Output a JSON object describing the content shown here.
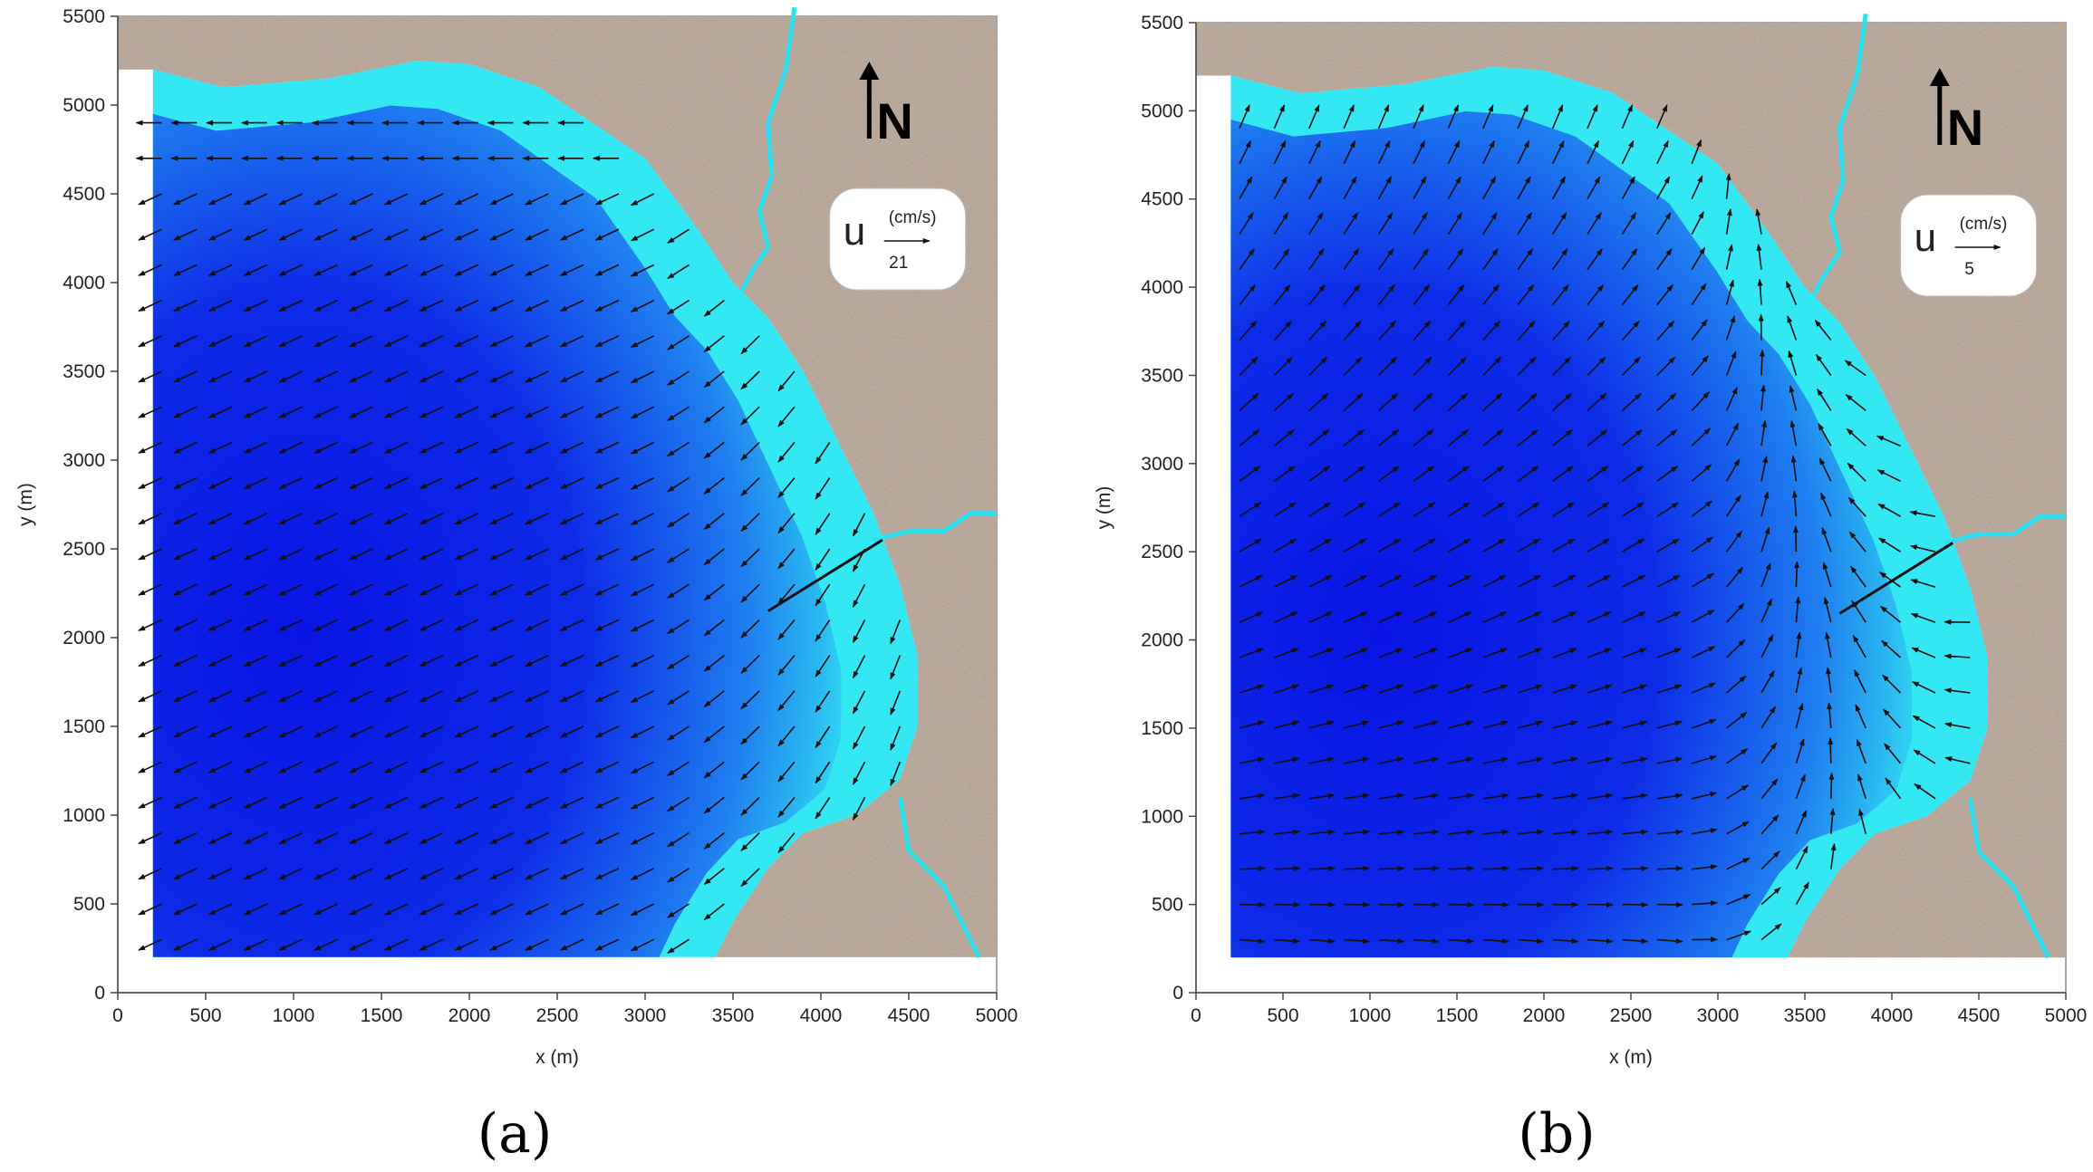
{
  "colors": {
    "land": "#a48f7f",
    "river": "#2ee0ee",
    "water_shallow": "#33e8f2",
    "water_mid": "#1f7ff0",
    "water_deep": "#0a14e6",
    "arrow": "#111111"
  },
  "panels": [
    {
      "label": "(a)",
      "legend_units": "(cm/s)",
      "legend_u": "u",
      "legend_value": "21",
      "north": "N"
    },
    {
      "label": "(b)",
      "legend_units": "(cm/s)",
      "legend_u": "u",
      "legend_value": "5",
      "north": "N"
    }
  ],
  "chart_data": [
    {
      "type": "vector-field",
      "xlabel": "x (m)",
      "ylabel": "y (m)",
      "xlim": [
        0,
        5000
      ],
      "ylim": [
        0,
        5500
      ],
      "xticks": [
        "0",
        "500",
        "1000",
        "1500",
        "2000",
        "2500",
        "3000",
        "3500",
        "4000",
        "4500",
        "5000"
      ],
      "yticks": [
        "0",
        "500",
        "1000",
        "1500",
        "2000",
        "2500",
        "3000",
        "3500",
        "4000",
        "4500",
        "5000",
        "5500"
      ],
      "shoreline": [
        [
          200,
          5200
        ],
        [
          600,
          5100
        ],
        [
          1200,
          5150
        ],
        [
          1700,
          5250
        ],
        [
          2000,
          5230
        ],
        [
          2400,
          5100
        ],
        [
          2700,
          4900
        ],
        [
          3000,
          4700
        ],
        [
          3300,
          4300
        ],
        [
          3500,
          4000
        ],
        [
          3700,
          3800
        ],
        [
          3900,
          3500
        ],
        [
          4100,
          3100
        ],
        [
          4300,
          2700
        ],
        [
          4450,
          2300
        ],
        [
          4550,
          1900
        ],
        [
          4550,
          1500
        ],
        [
          4450,
          1200
        ],
        [
          4200,
          1000
        ],
        [
          3900,
          900
        ],
        [
          3700,
          700
        ],
        [
          3500,
          400
        ],
        [
          3400,
          200
        ],
        [
          200,
          200
        ]
      ],
      "groyne": [
        [
          3700,
          2150
        ],
        [
          4350,
          2550
        ]
      ],
      "legend_scale": 21,
      "flow_pattern": "uniform south-west drift, veering southward along east shore"
    },
    {
      "type": "vector-field",
      "xlabel": "x (m)",
      "ylabel": "y (m)",
      "xlim": [
        0,
        5000
      ],
      "ylim": [
        0,
        5500
      ],
      "xticks": [
        "0",
        "500",
        "1000",
        "1500",
        "2000",
        "2500",
        "3000",
        "3500",
        "4000",
        "4500",
        "5000"
      ],
      "yticks": [
        "0",
        "500",
        "1000",
        "1500",
        "2000",
        "2500",
        "3000",
        "3500",
        "4000",
        "4500",
        "5000",
        "5500"
      ],
      "shoreline": [
        [
          200,
          5200
        ],
        [
          600,
          5100
        ],
        [
          1200,
          5150
        ],
        [
          1700,
          5250
        ],
        [
          2000,
          5230
        ],
        [
          2400,
          5100
        ],
        [
          2700,
          4900
        ],
        [
          3000,
          4700
        ],
        [
          3300,
          4300
        ],
        [
          3500,
          4000
        ],
        [
          3700,
          3800
        ],
        [
          3900,
          3500
        ],
        [
          4100,
          3100
        ],
        [
          4300,
          2700
        ],
        [
          4450,
          2300
        ],
        [
          4550,
          1900
        ],
        [
          4550,
          1500
        ],
        [
          4450,
          1200
        ],
        [
          4200,
          1000
        ],
        [
          3900,
          900
        ],
        [
          3700,
          700
        ],
        [
          3500,
          400
        ],
        [
          3400,
          200
        ],
        [
          200,
          200
        ]
      ],
      "groyne": [
        [
          3700,
          2150
        ],
        [
          4350,
          2550
        ]
      ],
      "legend_scale": 5,
      "flow_pattern": "north-east drift in west, recirculation near east shore"
    }
  ]
}
